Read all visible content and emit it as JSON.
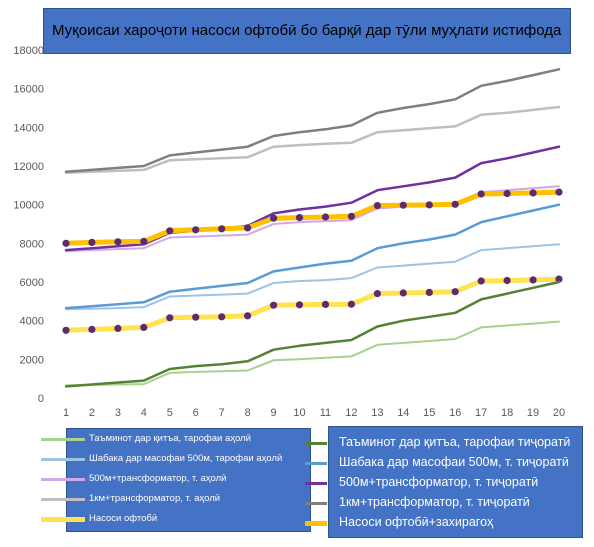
{
  "title": "Муқоисаи хароҷоти насоси офтобӣ бо барқӣ дар тӯли муҳлати истифода",
  "chart_data": {
    "type": "line",
    "title": "Муқоисаи хароҷоти насоси офтобӣ бо барқӣ дар тӯли муҳлати истифода",
    "xlabel": "",
    "ylabel": "",
    "x": [
      1,
      2,
      3,
      4,
      5,
      6,
      7,
      8,
      9,
      10,
      11,
      12,
      13,
      14,
      15,
      16,
      17,
      18,
      19,
      20
    ],
    "ylim": [
      0,
      18000
    ],
    "yticks": [
      0,
      2000,
      4000,
      6000,
      8000,
      10000,
      12000,
      14000,
      16000,
      18000
    ],
    "grid": false,
    "series": [
      {
        "name": "Таъминот дар қитъа, тарофаи аҳолӣ",
        "color": "#a9d18e",
        "width": 2,
        "markers": false,
        "values": [
          650,
          680,
          700,
          720,
          1300,
          1350,
          1380,
          1420,
          1950,
          2000,
          2080,
          2150,
          2750,
          2850,
          2950,
          3050,
          3650,
          3750,
          3850,
          3950
        ]
      },
      {
        "name": "Шабака дар масофаи 500м, тарофаи аҳолӣ",
        "color": "#9dc3e6",
        "width": 2,
        "markers": false,
        "values": [
          4600,
          4620,
          4650,
          4700,
          5250,
          5300,
          5350,
          5400,
          5950,
          6050,
          6100,
          6200,
          6750,
          6850,
          6950,
          7050,
          7650,
          7750,
          7850,
          7950
        ]
      },
      {
        "name": "500м+трансформатор, т. аҳолӣ",
        "color": "#d5a6e8",
        "width": 2,
        "markers": false,
        "values": [
          7600,
          7650,
          7700,
          7750,
          8300,
          8350,
          8400,
          8450,
          9000,
          9100,
          9150,
          9200,
          9800,
          9900,
          9950,
          10050,
          10650,
          10750,
          10850,
          10950
        ]
      },
      {
        "name": "1км+трансформатор, т. аҳолӣ",
        "color": "#bfbfbf",
        "width": 2.5,
        "markers": false,
        "values": [
          11650,
          11700,
          11750,
          11800,
          12300,
          12350,
          12400,
          12450,
          13000,
          13080,
          13150,
          13200,
          13750,
          13850,
          13950,
          14050,
          14650,
          14750,
          14900,
          15050
        ]
      },
      {
        "name": "Насоси офтобӣ",
        "color": "#ffe24d",
        "width": 5,
        "markers": true,
        "marker_color": "#5b2c6f",
        "values": [
          3500,
          3550,
          3600,
          3650,
          4150,
          4180,
          4200,
          4250,
          4800,
          4820,
          4840,
          4850,
          5400,
          5430,
          5460,
          5500,
          6050,
          6080,
          6110,
          6150
        ]
      },
      {
        "name": "Таъминот дар қитъа, тарофаи тиҷоратӣ",
        "color": "#548235",
        "width": 2.5,
        "markers": false,
        "values": [
          600,
          700,
          800,
          900,
          1500,
          1650,
          1750,
          1900,
          2500,
          2700,
          2850,
          3000,
          3700,
          4000,
          4200,
          4400,
          5100,
          5400,
          5700,
          6000
        ]
      },
      {
        "name": "Шабака дар масофаи 500м, т. тиҷоратӣ",
        "color": "#5b9bd5",
        "width": 2.5,
        "markers": false,
        "values": [
          4650,
          4750,
          4850,
          4950,
          5500,
          5650,
          5800,
          5950,
          6550,
          6750,
          6950,
          7100,
          7750,
          8000,
          8200,
          8450,
          9100,
          9400,
          9700,
          10000
        ]
      },
      {
        "name": "500м+трансформатор, т. тиҷоратӣ",
        "color": "#7030a0",
        "width": 2.5,
        "markers": false,
        "values": [
          7650,
          7750,
          7850,
          7950,
          8550,
          8650,
          8750,
          8900,
          9550,
          9750,
          9900,
          10100,
          10750,
          10950,
          11150,
          11400,
          12150,
          12400,
          12700,
          13000
        ]
      },
      {
        "name": "1км+трансформатор, т. тиҷоратӣ",
        "color": "#7f7f7f",
        "width": 2.5,
        "markers": false,
        "values": [
          11700,
          11800,
          11900,
          12000,
          12550,
          12700,
          12850,
          13000,
          13550,
          13750,
          13900,
          14100,
          14750,
          15000,
          15200,
          15450,
          16150,
          16400,
          16700,
          17000
        ]
      },
      {
        "name": "Насоси офтобӣ+захирагоҳ",
        "color": "#ffc000",
        "width": 5,
        "markers": true,
        "marker_color": "#5b2c6f",
        "values": [
          8000,
          8050,
          8080,
          8100,
          8650,
          8700,
          8750,
          8800,
          9300,
          9330,
          9360,
          9400,
          9950,
          9970,
          9990,
          10020,
          10550,
          10580,
          10610,
          10650
        ]
      }
    ],
    "legend_left": [
      0,
      1,
      2,
      3,
      4
    ],
    "legend_right": [
      5,
      6,
      7,
      8,
      9
    ]
  }
}
